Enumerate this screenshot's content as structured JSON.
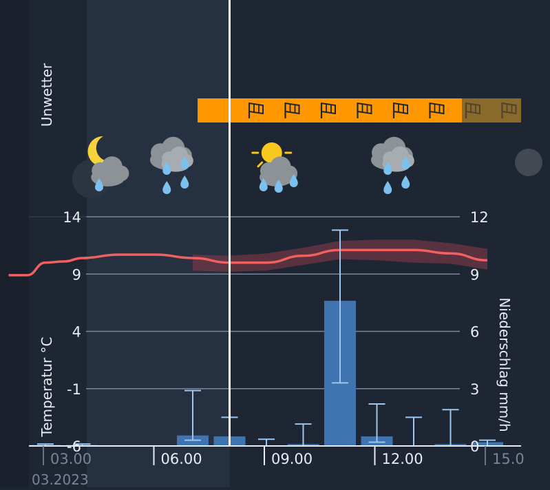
{
  "labels": {
    "warnings": "Unwetter",
    "temperature_axis": "Temperatur °C",
    "precip_axis": "Niederschlag mm/h"
  },
  "colors": {
    "background": "#1e2633",
    "night_band": "#253140",
    "now_line": "#ffffff",
    "warning_bar": "#ff9800",
    "temperature_line": "#f06060",
    "temperature_band": "#8a3a48",
    "precip_bar": "#3f74b0",
    "error_bar": "#9ec6ee",
    "grid": "#7c8696"
  },
  "warnings": {
    "type": "wind",
    "icon": "windsock-icon",
    "start_hour": 7.6,
    "end_hour": 14.5
  },
  "weather_icons": [
    {
      "hour": 3.5,
      "name": "moon-cloud-rain-icon"
    },
    {
      "hour": 6.5,
      "name": "cloud-heavy-rain-icon"
    },
    {
      "hour": 9.5,
      "name": "sun-cloud-rain-icon"
    },
    {
      "hour": 12.5,
      "name": "cloud-heavy-rain-icon"
    },
    {
      "hour": 14.5,
      "name": "cloud-icon"
    }
  ],
  "chart_data": {
    "type": "bar",
    "x_ticks": [
      "03.00",
      "06.00",
      "09.00",
      "12.00",
      "15.0"
    ],
    "date_label": "03.2023",
    "now_hour": 8.0,
    "left_axis": {
      "label": "Temperatur °C",
      "ticks": [
        14,
        9,
        4,
        -1,
        -6
      ],
      "ylim": [
        -6,
        14
      ]
    },
    "right_axis": {
      "label": "Niederschlag mm/h",
      "ticks": [
        12,
        9,
        6,
        3,
        0
      ],
      "ylim": [
        0,
        12
      ]
    },
    "temperature": {
      "x": [
        2.0,
        2.5,
        3.0,
        3.5,
        4.0,
        5.0,
        6.0,
        7.0,
        8.0,
        9.0,
        10.0,
        11.0,
        12.0,
        13.0,
        14.0,
        15.0
      ],
      "y": [
        8.9,
        8.9,
        10.0,
        10.1,
        10.4,
        10.7,
        10.7,
        10.4,
        10.0,
        10.0,
        10.6,
        11.1,
        11.1,
        11.1,
        10.8,
        10.2
      ],
      "band_low": [
        null,
        null,
        null,
        null,
        null,
        null,
        null,
        9.3,
        9.2,
        9.3,
        9.8,
        10.3,
        10.2,
        10.0,
        9.9,
        9.4
      ],
      "band_high": [
        null,
        null,
        null,
        null,
        null,
        null,
        null,
        10.7,
        10.6,
        10.8,
        11.3,
        11.9,
        12.0,
        12.0,
        11.7,
        11.2
      ]
    },
    "precipitation": [
      {
        "hour": 3.0,
        "value": 0.05,
        "low": 0.0,
        "high": 0.1
      },
      {
        "hour": 4.0,
        "value": 0.05,
        "low": 0.0,
        "high": 0.1
      },
      {
        "hour": 7.0,
        "value": 0.55,
        "low": 0.3,
        "high": 2.9
      },
      {
        "hour": 8.0,
        "value": 0.5,
        "low": 0.0,
        "high": 1.5
      },
      {
        "hour": 9.0,
        "value": 0.0,
        "low": 0.0,
        "high": 0.35
      },
      {
        "hour": 10.0,
        "value": 0.1,
        "low": 0.0,
        "high": 1.15
      },
      {
        "hour": 11.0,
        "value": 7.6,
        "low": 3.3,
        "high": 11.3
      },
      {
        "hour": 12.0,
        "value": 0.5,
        "low": 0.2,
        "high": 2.2
      },
      {
        "hour": 13.0,
        "value": 0.0,
        "low": 0.0,
        "high": 1.5
      },
      {
        "hour": 14.0,
        "value": 0.1,
        "low": 0.0,
        "high": 1.9
      },
      {
        "hour": 15.0,
        "value": 0.2,
        "low": 0.0,
        "high": 0.3
      }
    ]
  }
}
